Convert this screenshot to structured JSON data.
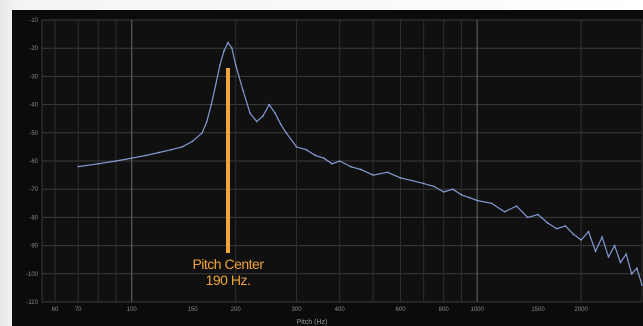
{
  "chart_data": {
    "type": "line",
    "title": "",
    "xlabel": "",
    "ylabel": "",
    "x_scale": "log",
    "grid": true,
    "xlim": [
      55,
      3000
    ],
    "ylim": [
      -110,
      -10
    ],
    "series": [
      {
        "x": [
          70,
          80,
          90,
          100,
          110,
          120,
          130,
          140,
          150,
          160,
          165,
          170,
          175,
          180,
          185,
          190,
          195,
          200,
          210,
          220,
          230,
          240,
          250,
          260,
          270,
          280,
          300,
          320,
          340,
          360,
          380,
          400,
          430,
          460,
          500,
          550,
          600,
          650,
          700,
          750,
          800,
          850,
          900,
          950,
          1000,
          1100,
          1200,
          1300,
          1400,
          1500,
          1600,
          1700,
          1800,
          1900,
          2000,
          2100,
          2200,
          2300,
          2400,
          2500,
          2600,
          2700,
          2800,
          2900,
          3000
        ],
        "values": [
          -62,
          -61,
          -60,
          -59,
          -58,
          -57,
          -56,
          -55,
          -53,
          -50,
          -46,
          -40,
          -33,
          -26,
          -21,
          -18,
          -20,
          -26,
          -35,
          -43,
          -46,
          -44,
          -40,
          -43,
          -47,
          -50,
          -55,
          -56,
          -58,
          -59,
          -61,
          -60,
          -62,
          -63,
          -65,
          -64,
          -66,
          -67,
          -68,
          -69,
          -71,
          -70,
          -72,
          -73,
          -74,
          -75,
          -78,
          -76,
          -80,
          -79,
          -82,
          -84,
          -83,
          -86,
          -88,
          -85,
          -92,
          -87,
          -94,
          -90,
          -96,
          -93,
          -100,
          -98,
          -104
        ]
      }
    ],
    "annotation": {
      "line1": "Pitch Center",
      "line2": "190 Hz.",
      "x": 190,
      "color": "#f0a43b"
    },
    "x_tick_labels": [
      "60",
      "70",
      "100",
      "150",
      "200",
      "300",
      "400",
      "600",
      "800",
      "1000",
      "1500",
      "2000"
    ],
    "y_tick_labels": [
      "-10",
      "-20",
      "-30",
      "-40",
      "-50",
      "-60",
      "-70",
      "-80",
      "-90",
      "-100",
      "-110"
    ],
    "x_axis_caption": "Pitch (Hz)",
    "line_color": "#8fa7e6"
  }
}
